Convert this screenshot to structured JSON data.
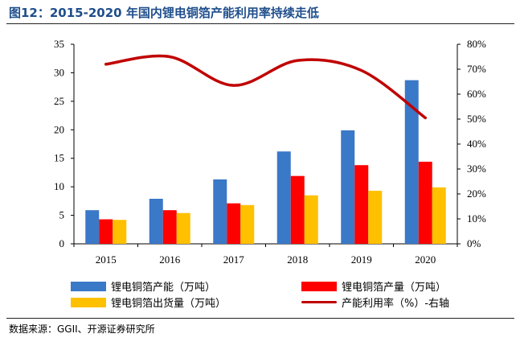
{
  "title": "图12：2015-2020 年国内锂电铜箔产能利用率持续走低",
  "source": "数据来源：GGII、开源证券研究所",
  "colors": {
    "capacity": "#3a78c8",
    "output": "#ff0000",
    "shipment": "#ffc000",
    "utilization": "#c00000",
    "title": "#1f4e8c"
  },
  "chart_data": {
    "type": "bar",
    "categories": [
      "2015",
      "2016",
      "2017",
      "2018",
      "2019",
      "2020"
    ],
    "series": [
      {
        "name": "锂电铜箔产能（万吨）",
        "values": [
          5.9,
          7.9,
          11.3,
          16.2,
          19.9,
          28.7
        ]
      },
      {
        "name": "锂电铜箔产量（万吨）",
        "values": [
          4.3,
          5.9,
          7.1,
          11.9,
          13.8,
          14.4
        ]
      },
      {
        "name": "锂电铜箔出货量（万吨）",
        "values": [
          4.2,
          5.4,
          6.8,
          8.5,
          9.3,
          9.9
        ]
      }
    ],
    "line_series": {
      "name": "产能利用率（%）-右轴",
      "type": "line",
      "axis": "right",
      "values": [
        72.0,
        75.0,
        63.5,
        73.5,
        69.5,
        50.5
      ]
    },
    "y_left": {
      "ylim": [
        0,
        35
      ],
      "ticks": [
        "0",
        "5",
        "10",
        "15",
        "20",
        "25",
        "30",
        "35"
      ]
    },
    "y_right": {
      "ylim": [
        0,
        80
      ],
      "ticks": [
        "0%",
        "10%",
        "20%",
        "30%",
        "40%",
        "50%",
        "60%",
        "70%",
        "80%"
      ]
    },
    "legend": "bottom",
    "grid": false
  }
}
